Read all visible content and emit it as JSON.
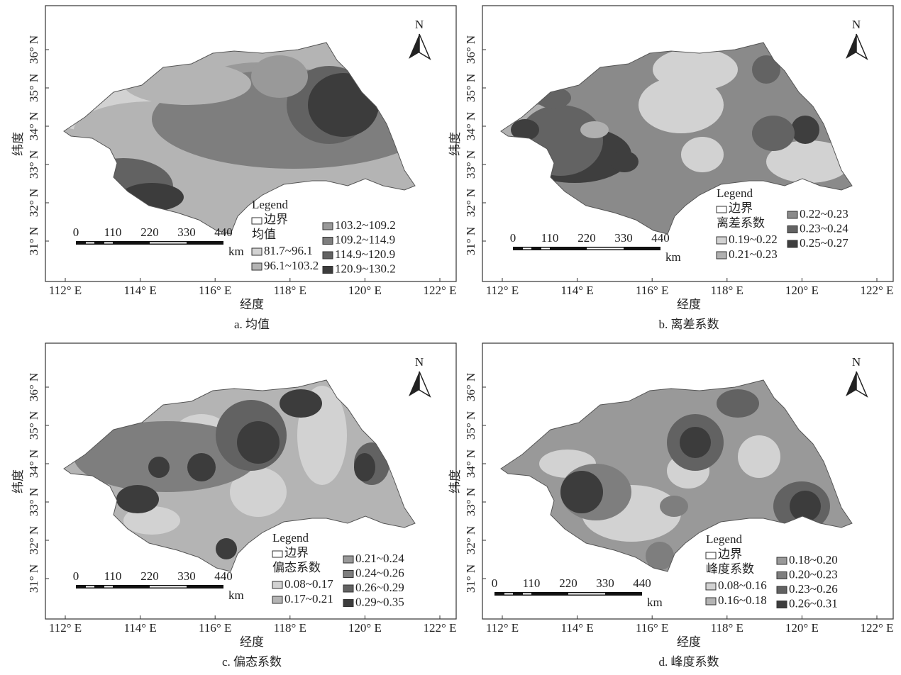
{
  "panels": [
    {
      "caption": "a. 均值",
      "x_axis_label": "经度",
      "y_axis_label": "纬度",
      "x_ticks": [
        "112° E",
        "114° E",
        "116° E",
        "118° E",
        "120° E",
        "122° E"
      ],
      "y_ticks": [
        "31° N",
        "32° N",
        "33° N",
        "34° N",
        "35° N",
        "36° N"
      ],
      "north": "N",
      "scale": {
        "labels": [
          "0",
          "110",
          "220",
          "330",
          "440"
        ],
        "unit": "km"
      },
      "legend": {
        "title": "Legend",
        "boundary": "边界",
        "field": "均值",
        "classes": [
          {
            "label": "81.7~96.1",
            "color": "#d2d2d2"
          },
          {
            "label": "96.1~103.2",
            "color": "#b4b4b4"
          },
          {
            "label": "103.2~109.2",
            "color": "#999999"
          },
          {
            "label": "109.2~114.9",
            "color": "#7e7e7e"
          },
          {
            "label": "114.9~120.9",
            "color": "#626262"
          },
          {
            "label": "120.9~130.2",
            "color": "#3c3c3c"
          }
        ]
      }
    },
    {
      "caption": "b. 离差系数",
      "x_axis_label": "经度",
      "y_axis_label": "纬度",
      "x_ticks": [
        "112° E",
        "114° E",
        "116° E",
        "118° E",
        "120° E",
        "122° E"
      ],
      "y_ticks": [
        "31° N",
        "32° N",
        "33° N",
        "34° N",
        "35° N",
        "36° N"
      ],
      "north": "N",
      "scale": {
        "labels": [
          "0",
          "110",
          "220",
          "330",
          "440"
        ],
        "unit": "km"
      },
      "legend": {
        "title": "Legend",
        "boundary": "边界",
        "field": "离差系数",
        "classes": [
          {
            "label": "0.19~0.22",
            "color": "#d2d2d2"
          },
          {
            "label": "0.21~0.23",
            "color": "#b0b0b0"
          },
          {
            "label": "0.22~0.23",
            "color": "#8a8a8a"
          },
          {
            "label": "0.23~0.24",
            "color": "#636363"
          },
          {
            "label": "0.25~0.27",
            "color": "#3e3e3e"
          }
        ]
      }
    },
    {
      "caption": "c. 偏态系数",
      "x_axis_label": "经度",
      "y_axis_label": "纬度",
      "x_ticks": [
        "112° E",
        "114° E",
        "116° E",
        "118° E",
        "120° E",
        "122° E"
      ],
      "y_ticks": [
        "31° N",
        "32° N",
        "33° N",
        "34° N",
        "35° N",
        "36° N"
      ],
      "north": "N",
      "scale": {
        "labels": [
          "0",
          "110",
          "220",
          "330",
          "440"
        ],
        "unit": "km"
      },
      "legend": {
        "title": "Legend",
        "boundary": "边界",
        "field": "偏态系数",
        "classes": [
          {
            "label": "0.08~0.17",
            "color": "#d2d2d2"
          },
          {
            "label": "0.17~0.21",
            "color": "#b4b4b4"
          },
          {
            "label": "0.21~0.24",
            "color": "#999999"
          },
          {
            "label": "0.24~0.26",
            "color": "#7e7e7e"
          },
          {
            "label": "0.26~0.29",
            "color": "#626262"
          },
          {
            "label": "0.29~0.35",
            "color": "#3c3c3c"
          }
        ]
      }
    },
    {
      "caption": "d. 峰度系数",
      "x_axis_label": "经度",
      "y_axis_label": "纬度",
      "x_ticks": [
        "112° E",
        "114° E",
        "116° E",
        "118° E",
        "120° E",
        "122° E"
      ],
      "y_ticks": [
        "31° N",
        "32° N",
        "33° N",
        "34° N",
        "35° N",
        "36° N"
      ],
      "north": "N",
      "scale": {
        "labels": [
          "0",
          "110",
          "220",
          "330",
          "440"
        ],
        "unit": "km"
      },
      "legend": {
        "title": "Legend",
        "boundary": "边界",
        "field": "峰度系数",
        "classes": [
          {
            "label": "0.08~0.16",
            "color": "#d2d2d2"
          },
          {
            "label": "0.16~0.18",
            "color": "#b4b4b4"
          },
          {
            "label": "0.18~0.20",
            "color": "#999999"
          },
          {
            "label": "0.20~0.23",
            "color": "#7e7e7e"
          },
          {
            "label": "0.23~0.26",
            "color": "#626262"
          },
          {
            "label": "0.26~0.31",
            "color": "#3c3c3c"
          }
        ]
      }
    }
  ]
}
